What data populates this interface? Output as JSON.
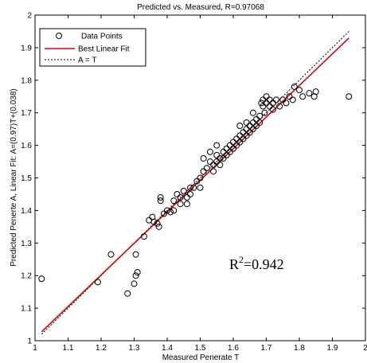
{
  "chart_data": {
    "type": "scatter",
    "title": "Predicted vs. Measured, R=0.97068",
    "xlabel": "Measured Penerate T",
    "ylabel": "Predicted Penerte A,  Linear Fit: A=(0.97)T+(0.038)",
    "xlim": [
      1,
      2
    ],
    "ylim": [
      1,
      2
    ],
    "x_ticks": [
      "1",
      "1.1",
      "1.2",
      "1.3",
      "1.4",
      "1.5",
      "1.6",
      "1.7",
      "1.8",
      "1.9",
      "2"
    ],
    "y_ticks": [
      "1",
      "1.1",
      "1.2",
      "1.3",
      "1.4",
      "1.5",
      "1.6",
      "1.7",
      "1.8",
      "1.9",
      "2"
    ],
    "grid": false,
    "legend_position": "top-left",
    "legend": [
      {
        "label": "Data Points",
        "style": "circle-marker",
        "color": "#000000"
      },
      {
        "label": "Best Linear Fit",
        "style": "solid-line",
        "color": "#e00000"
      },
      {
        "label": "A = T",
        "style": "dashed-line",
        "color": "#000000"
      }
    ],
    "annotation_base": "R",
    "annotation_sup": "2",
    "annotation_value": "=0.942",
    "series": [
      {
        "name": "Data Points",
        "points": [
          [
            1.02,
            1.19
          ],
          [
            1.19,
            1.18
          ],
          [
            1.23,
            1.265
          ],
          [
            1.28,
            1.145
          ],
          [
            1.3,
            1.175
          ],
          [
            1.305,
            1.2
          ],
          [
            1.31,
            1.21
          ],
          [
            1.305,
            1.265
          ],
          [
            1.33,
            1.32
          ],
          [
            1.345,
            1.37
          ],
          [
            1.36,
            1.365
          ],
          [
            1.355,
            1.38
          ],
          [
            1.37,
            1.36
          ],
          [
            1.375,
            1.35
          ],
          [
            1.38,
            1.44
          ],
          [
            1.38,
            1.43
          ],
          [
            1.39,
            1.39
          ],
          [
            1.4,
            1.4
          ],
          [
            1.41,
            1.395
          ],
          [
            1.42,
            1.4
          ],
          [
            1.43,
            1.45
          ],
          [
            1.44,
            1.42
          ],
          [
            1.44,
            1.44
          ],
          [
            1.45,
            1.46
          ],
          [
            1.46,
            1.44
          ],
          [
            1.47,
            1.47
          ],
          [
            1.47,
            1.45
          ],
          [
            1.48,
            1.47
          ],
          [
            1.49,
            1.49
          ],
          [
            1.5,
            1.47
          ],
          [
            1.5,
            1.5
          ],
          [
            1.51,
            1.52
          ],
          [
            1.52,
            1.53
          ],
          [
            1.53,
            1.55
          ],
          [
            1.54,
            1.52
          ],
          [
            1.54,
            1.54
          ],
          [
            1.55,
            1.55
          ],
          [
            1.55,
            1.57
          ],
          [
            1.56,
            1.56
          ],
          [
            1.56,
            1.54
          ],
          [
            1.57,
            1.58
          ],
          [
            1.57,
            1.56
          ],
          [
            1.58,
            1.59
          ],
          [
            1.58,
            1.57
          ],
          [
            1.59,
            1.6
          ],
          [
            1.59,
            1.58
          ],
          [
            1.6,
            1.61
          ],
          [
            1.6,
            1.59
          ],
          [
            1.61,
            1.62
          ],
          [
            1.61,
            1.6
          ],
          [
            1.62,
            1.63
          ],
          [
            1.62,
            1.61
          ],
          [
            1.63,
            1.64
          ],
          [
            1.63,
            1.62
          ],
          [
            1.64,
            1.65
          ],
          [
            1.64,
            1.63
          ],
          [
            1.65,
            1.66
          ],
          [
            1.65,
            1.64
          ],
          [
            1.66,
            1.67
          ],
          [
            1.66,
            1.65
          ],
          [
            1.67,
            1.68
          ],
          [
            1.67,
            1.66
          ],
          [
            1.68,
            1.67
          ],
          [
            1.68,
            1.69
          ],
          [
            1.685,
            1.73
          ],
          [
            1.69,
            1.74
          ],
          [
            1.69,
            1.72
          ],
          [
            1.695,
            1.7
          ],
          [
            1.7,
            1.73
          ],
          [
            1.7,
            1.75
          ],
          [
            1.71,
            1.72
          ],
          [
            1.71,
            1.74
          ],
          [
            1.72,
            1.73
          ],
          [
            1.72,
            1.71
          ],
          [
            1.73,
            1.74
          ],
          [
            1.74,
            1.72
          ],
          [
            1.75,
            1.74
          ],
          [
            1.76,
            1.73
          ],
          [
            1.77,
            1.75
          ],
          [
            1.78,
            1.74
          ],
          [
            1.785,
            1.78
          ],
          [
            1.8,
            1.77
          ],
          [
            1.81,
            1.75
          ],
          [
            1.83,
            1.76
          ],
          [
            1.845,
            1.75
          ],
          [
            1.85,
            1.765
          ],
          [
            1.95,
            1.75
          ],
          [
            1.53,
            1.58
          ],
          [
            1.51,
            1.56
          ],
          [
            1.55,
            1.6
          ],
          [
            1.46,
            1.42
          ],
          [
            1.42,
            1.43
          ],
          [
            1.64,
            1.67
          ],
          [
            1.66,
            1.7
          ],
          [
            1.62,
            1.66
          ]
        ]
      },
      {
        "name": "Best Linear Fit",
        "line": {
          "slope": 0.97,
          "intercept": 0.038,
          "x_range": [
            1.02,
            1.95
          ]
        }
      },
      {
        "name": "A = T",
        "line": {
          "slope": 1.0,
          "intercept": 0.0,
          "x_range": [
            1.02,
            1.95
          ]
        }
      }
    ]
  }
}
